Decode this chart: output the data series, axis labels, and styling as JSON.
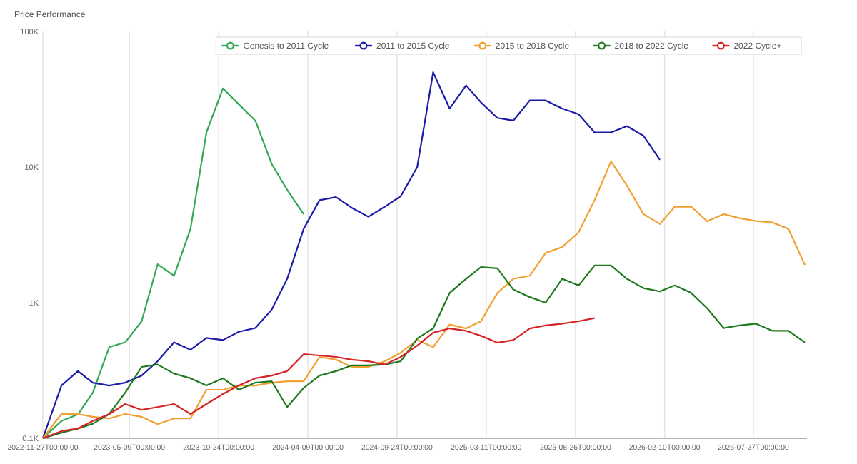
{
  "chart_data": {
    "type": "line",
    "ylabel": "Price Performance",
    "log": "y",
    "grid": "x",
    "legend": "top right",
    "line_style": "solid",
    "x": [
      "2022-11-27",
      "2023-01-01",
      "2023-02-01",
      "2023-03-01",
      "2023-04-01",
      "2023-05-01",
      "2023-06-01",
      "2023-07-01",
      "2023-08-01",
      "2023-09-01",
      "2023-10-01",
      "2023-11-01",
      "2023-12-01",
      "2024-01-01",
      "2024-02-01",
      "2024-03-01",
      "2024-04-01",
      "2024-05-01",
      "2024-06-01",
      "2024-07-01",
      "2024-08-01",
      "2024-09-01",
      "2024-10-01",
      "2024-11-01",
      "2024-12-01",
      "2025-01-01",
      "2025-02-01",
      "2025-03-01",
      "2025-04-01",
      "2025-05-01",
      "2025-06-01",
      "2025-07-01",
      "2025-08-01",
      "2025-09-01",
      "2025-10-01",
      "2025-11-01",
      "2025-12-01",
      "2026-01-01",
      "2026-02-01",
      "2026-03-01",
      "2026-04-01",
      "2026-05-01",
      "2026-06-01",
      "2026-07-01",
      "2026-08-01",
      "2026-09-01",
      "2026-10-01",
      "2026-11-01"
    ],
    "xlim": [
      "2022-11-27",
      "2026-11-05"
    ],
    "xticks": [
      {
        "value": "2022-11-27",
        "label": "2022-11-27T00:00:00"
      },
      {
        "value": "2023-05-09",
        "label": "2023-05-09T00:00:00"
      },
      {
        "value": "2023-10-24",
        "label": "2023-10-24T00:00:00"
      },
      {
        "value": "2024-04-09",
        "label": "2024-04-09T00:00:00"
      },
      {
        "value": "2024-09-24",
        "label": "2024-09-24T00:00:00"
      },
      {
        "value": "2025-03-11",
        "label": "2025-03-11T00:00:00"
      },
      {
        "value": "2025-08-26",
        "label": "2025-08-26T00:00:00"
      },
      {
        "value": "2026-02-10",
        "label": "2026-02-10T00:00:00"
      },
      {
        "value": "2026-07-27",
        "label": "2026-07-27T00:00:00"
      }
    ],
    "ylim": [
      100,
      100000
    ],
    "yticks": [
      {
        "value": 100,
        "label": "0.1K"
      },
      {
        "value": 1000,
        "label": "1K"
      },
      {
        "value": 10000,
        "label": "10K"
      },
      {
        "value": 100000,
        "label": "100K"
      }
    ],
    "series": [
      {
        "name": "Genesis to 2011 Cycle",
        "color": "#34a853",
        "values": [
          100,
          134,
          150,
          217,
          470,
          510,
          730,
          1920,
          1580,
          3500,
          18000,
          38000,
          29000,
          22000,
          10500,
          6800,
          4500,
          null,
          null,
          null,
          null,
          null,
          null,
          null,
          null,
          null,
          null,
          null,
          null,
          null,
          null,
          null,
          null,
          null,
          null,
          null,
          null,
          null,
          null,
          null,
          null,
          null,
          null,
          null,
          null,
          null,
          null,
          null
        ]
      },
      {
        "name": "2011 to 2015 Cycle",
        "color": "#1c1ca8",
        "values": [
          100,
          245,
          313,
          257,
          245,
          257,
          290,
          370,
          510,
          450,
          550,
          530,
          610,
          650,
          890,
          1500,
          3500,
          5700,
          6000,
          5000,
          4300,
          5100,
          6100,
          10000,
          50000,
          27000,
          40000,
          30000,
          23000,
          22000,
          31000,
          31000,
          27000,
          24500,
          18000,
          18000,
          20000,
          17000,
          11300,
          null,
          null,
          null,
          null,
          null,
          null,
          null,
          null,
          null
        ]
      },
      {
        "name": "2015 to 2018 Cycle",
        "color": "#f0a030",
        "values": [
          100,
          151,
          151,
          144,
          140,
          151,
          144,
          127,
          140,
          140,
          228,
          228,
          245,
          245,
          257,
          263,
          263,
          398,
          380,
          336,
          336,
          370,
          427,
          532,
          470,
          690,
          646,
          730,
          1180,
          1500,
          1580,
          2330,
          2570,
          3300,
          5700,
          11000,
          7300,
          4500,
          3800,
          5100,
          5100,
          3980,
          4500,
          4200,
          4000,
          3900,
          3500,
          1900
        ]
      },
      {
        "name": "2018 to 2022 Cycle",
        "color": "#1e7a1e",
        "values": [
          100,
          110,
          118,
          128,
          151,
          217,
          336,
          350,
          300,
          277,
          245,
          277,
          228,
          257,
          263,
          170,
          235,
          290,
          313,
          345,
          345,
          350,
          370,
          545,
          646,
          1180,
          1500,
          1830,
          1790,
          1250,
          1100,
          1000,
          1500,
          1340,
          1880,
          1880,
          1500,
          1280,
          1210,
          1340,
          1180,
          910,
          650,
          680,
          700,
          620,
          620,
          510
        ]
      },
      {
        "name": "2022 Cycle+",
        "color": "#d62424",
        "values": [
          100,
          113,
          118,
          134,
          151,
          179,
          162,
          170,
          179,
          151,
          179,
          212,
          245,
          277,
          290,
          313,
          417,
          408,
          398,
          380,
          370,
          350,
          398,
          483,
          600,
          646,
          620,
          570,
          507,
          530,
          646,
          680,
          700,
          730,
          770,
          null,
          null,
          null,
          null,
          null,
          null,
          null,
          null,
          null,
          null,
          null,
          null,
          null
        ]
      }
    ]
  }
}
